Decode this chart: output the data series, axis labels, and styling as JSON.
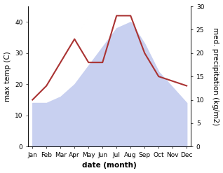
{
  "months": [
    "Jan",
    "Feb",
    "Mar",
    "Apr",
    "May",
    "Jun",
    "Jul",
    "Aug",
    "Sep",
    "Oct",
    "Nov",
    "Dec"
  ],
  "temp": [
    14,
    14,
    16,
    20,
    26,
    32,
    38,
    40,
    33,
    24,
    19,
    14
  ],
  "precip": [
    10,
    13,
    18,
    23,
    18,
    18,
    28,
    28,
    20,
    15,
    14,
    13
  ],
  "temp_fill_color": "#c8d0f0",
  "precip_color": "#aa3333",
  "left_ylim": [
    0,
    45
  ],
  "right_ylim": [
    0,
    30
  ],
  "left_yticks": [
    0,
    10,
    20,
    30,
    40
  ],
  "right_yticks": [
    0,
    5,
    10,
    15,
    20,
    25,
    30
  ],
  "xlabel": "date (month)",
  "ylabel_left": "max temp (C)",
  "ylabel_right": "med. precipitation (kg/m2)",
  "label_fontsize": 7.5,
  "tick_fontsize": 6.5
}
